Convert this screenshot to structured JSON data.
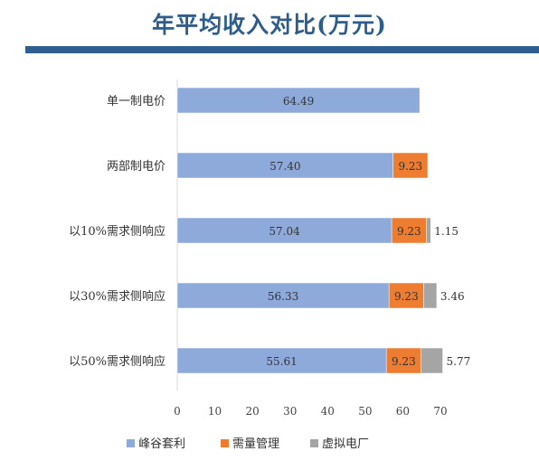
{
  "chart_data": {
    "type": "bar",
    "orientation": "horizontal",
    "stacked": true,
    "title": "年平均收入对比(万元)",
    "categories": [
      "单一制电价",
      "两部制电价",
      "以10%需求侧响应",
      "以30%需求侧响应",
      "以50%需求侧响应"
    ],
    "series": [
      {
        "name": "峰谷套利",
        "color": "#8eaadb",
        "values": [
          64.49,
          57.4,
          57.04,
          56.33,
          55.61
        ],
        "labels": [
          "64.49",
          "57.40",
          "57.04",
          "56.33",
          "55.61"
        ]
      },
      {
        "name": "需量管理",
        "color": "#ed7d31",
        "values": [
          null,
          9.23,
          9.23,
          9.23,
          9.23
        ],
        "labels": [
          "",
          "9.23",
          "9.23",
          "9.23",
          "9.23"
        ]
      },
      {
        "name": "虚拟电厂",
        "color": "#a5a5a5",
        "values": [
          null,
          null,
          1.15,
          3.46,
          5.77
        ],
        "labels": [
          "",
          "",
          "1.15",
          "3.46",
          "5.77"
        ]
      }
    ],
    "xlim": [
      0,
      70
    ],
    "xticks": [
      "0",
      "10",
      "20",
      "30",
      "40",
      "50",
      "60",
      "70"
    ],
    "grid": false,
    "legend_position": "bottom"
  }
}
